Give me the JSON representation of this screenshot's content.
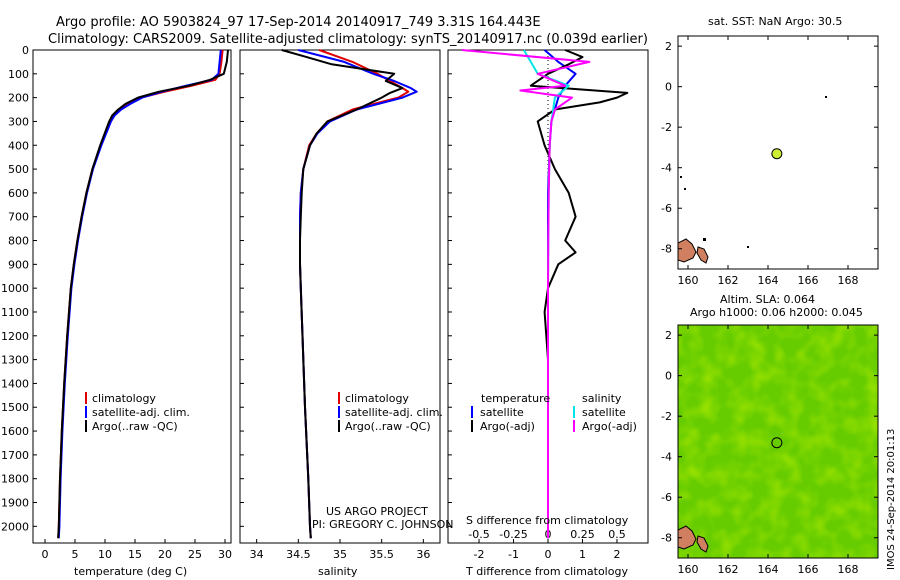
{
  "header": {
    "title_line1": "Argo profile: AO 5903824_97 17-Sep-2014 20140917_749 3.31S 164.443E",
    "title_line2": "Climatology: CARS2009. Satellite-adjusted climatology: synTS_20140917.nc (0.039d earlier)"
  },
  "depth_ticks": [
    "0",
    "100",
    "200",
    "300",
    "400",
    "500",
    "600",
    "700",
    "800",
    "900",
    "1000",
    "1100",
    "1200",
    "1300",
    "1400",
    "1500",
    "1600",
    "1700",
    "1800",
    "1900",
    "2000"
  ],
  "legend": {
    "climatology": "climatology",
    "satellite_adj": "satellite-adj. clim.",
    "argo_raw": "Argo(..raw -QC)",
    "temperature_hdr": "temperature",
    "salinity_hdr": "salinity",
    "satellite": "satellite",
    "argo_adj": "Argo(-adj)"
  },
  "colors": {
    "climatology": "#e00000",
    "satellite_adj": "#0000ff",
    "argo": "#000000",
    "t_satellite": "#0000ff",
    "t_argo": "#000000",
    "s_satellite": "#00e5e5",
    "s_argo": "#ff00ff",
    "sla_field": "#66cc00",
    "float_marker": "#ccee33",
    "land": "#d08060"
  },
  "credits": {
    "project": "US ARGO PROJECT",
    "pi": "PI: GREGORY C. JOHNSON"
  },
  "sst_map": {
    "title": "sat. SST: NaN Argo: 30.5",
    "xticks": [
      "160",
      "162",
      "164",
      "166",
      "168"
    ],
    "yticks": [
      "2",
      "0",
      "-2",
      "-4",
      "-6",
      "-8"
    ]
  },
  "sla_map": {
    "title_line1": "Altim. SLA: 0.064",
    "title_line2": "Argo h1000: 0.06 h2000: 0.045",
    "xticks": [
      "160",
      "162",
      "164",
      "166",
      "168"
    ],
    "yticks": [
      "2",
      "0",
      "-2",
      "-4",
      "-6",
      "-8"
    ]
  },
  "side_stamp": "IMOS 24-Sep-2014 20:01:13",
  "chart_data": [
    {
      "type": "line",
      "xlabel": "temperature (deg C)",
      "xticks": [
        "0",
        "5",
        "10",
        "15",
        "20",
        "25",
        "30"
      ],
      "xlim": [
        -2,
        31
      ],
      "ylim": [
        2070,
        0
      ],
      "series": [
        {
          "name": "climatology",
          "depth": [
            0,
            50,
            100,
            125,
            150,
            175,
            200,
            225,
            250,
            275,
            300,
            400,
            500,
            600,
            700,
            800,
            900,
            1000,
            1200,
            1400,
            1600,
            1800,
            2000,
            2050
          ],
          "values": [
            29.6,
            29.4,
            29.1,
            28.4,
            24.5,
            20.0,
            16.0,
            14.0,
            12.5,
            11.5,
            10.9,
            9.3,
            7.9,
            6.9,
            6.1,
            5.4,
            4.8,
            4.3,
            3.7,
            3.2,
            2.8,
            2.5,
            2.3,
            2.2
          ]
        },
        {
          "name": "satellite-adj. clim.",
          "depth": [
            0,
            50,
            100,
            125,
            150,
            175,
            200,
            225,
            250,
            275,
            300,
            400,
            500,
            600,
            700,
            800,
            900,
            1000,
            1200,
            1400,
            1600,
            1800,
            2000,
            2050
          ],
          "values": [
            29.3,
            29.1,
            28.9,
            27.8,
            23.5,
            19.5,
            16.2,
            14.3,
            12.7,
            11.6,
            11.0,
            9.4,
            8.0,
            7.0,
            6.2,
            5.5,
            4.9,
            4.4,
            3.8,
            3.3,
            2.9,
            2.6,
            2.4,
            2.3
          ]
        },
        {
          "name": "Argo(..raw -QC)",
          "depth": [
            0,
            50,
            100,
            125,
            150,
            175,
            200,
            225,
            250,
            275,
            300,
            400,
            500,
            600,
            700,
            800,
            900,
            1000,
            1200,
            1400,
            1600,
            1800,
            2000,
            2050
          ],
          "values": [
            30.5,
            30.3,
            29.8,
            27.5,
            24.0,
            19.0,
            15.5,
            13.5,
            12.2,
            11.2,
            10.7,
            9.2,
            7.9,
            6.9,
            6.1,
            5.4,
            4.8,
            4.3,
            3.7,
            3.2,
            2.8,
            2.5,
            2.3,
            2.2
          ]
        }
      ]
    },
    {
      "type": "line",
      "xlabel": "salinity",
      "xticks": [
        "34",
        "34.5",
        "35",
        "35.5",
        "36"
      ],
      "xlim": [
        33.8,
        36.2
      ],
      "ylim": [
        2070,
        0
      ],
      "series": [
        {
          "name": "climatology",
          "depth": [
            0,
            50,
            100,
            130,
            160,
            175,
            200,
            250,
            300,
            350,
            400,
            500,
            600,
            700,
            800,
            900,
            1000,
            1200,
            1500,
            1800,
            2000,
            2050
          ],
          "values": [
            34.75,
            35.15,
            35.45,
            35.6,
            35.75,
            35.82,
            35.7,
            35.15,
            34.85,
            34.72,
            34.63,
            34.56,
            34.53,
            34.52,
            34.52,
            34.52,
            34.53,
            34.55,
            34.58,
            34.62,
            34.64,
            34.65
          ]
        },
        {
          "name": "satellite-adj. clim.",
          "depth": [
            0,
            50,
            100,
            130,
            160,
            175,
            200,
            250,
            300,
            350,
            400,
            500,
            600,
            700,
            800,
            900,
            1000,
            1200,
            1500,
            1800,
            2000,
            2050
          ],
          "values": [
            34.5,
            35.05,
            35.4,
            35.65,
            35.85,
            35.92,
            35.75,
            35.2,
            34.88,
            34.73,
            34.64,
            34.56,
            34.53,
            34.52,
            34.52,
            34.52,
            34.53,
            34.55,
            34.58,
            34.62,
            34.64,
            34.65
          ]
        },
        {
          "name": "Argo(..raw -QC)",
          "depth": [
            0,
            30,
            60,
            100,
            130,
            160,
            180,
            200,
            250,
            300,
            350,
            400,
            500,
            600,
            700,
            800,
            900,
            1000,
            1200,
            1500,
            1800,
            2000,
            2050
          ],
          "values": [
            34.3,
            34.6,
            34.9,
            35.65,
            35.55,
            35.75,
            35.6,
            35.5,
            35.2,
            34.85,
            34.72,
            34.64,
            34.56,
            34.54,
            34.53,
            34.52,
            34.52,
            34.53,
            34.55,
            34.58,
            34.62,
            34.64,
            34.65
          ]
        }
      ]
    },
    {
      "type": "line",
      "xlabel": "T difference from climatology",
      "xlabel_top": "S difference from climatology",
      "xticks_T": [
        "-2",
        "-1",
        "0",
        "1",
        "2"
      ],
      "xticks_S": [
        "-0.5",
        "-0.25",
        "0",
        "0.25",
        "0.5"
      ],
      "xlim": [
        -2.9,
        2.9
      ],
      "ylim": [
        2070,
        0
      ],
      "series": [
        {
          "name": "temperature satellite",
          "depth": [
            0,
            50,
            100,
            150,
            200,
            250,
            300,
            400,
            600,
            800,
            1000,
            1500,
            2050
          ],
          "values": [
            -0.1,
            0.3,
            0.8,
            0.5,
            0.3,
            0.2,
            0.1,
            0.05,
            0.0,
            0.0,
            0.0,
            0.0,
            0.0
          ]
        },
        {
          "name": "temperature Argo(-adj)",
          "depth": [
            0,
            30,
            60,
            100,
            150,
            180,
            200,
            220,
            250,
            300,
            400,
            500,
            600,
            700,
            800,
            850,
            900,
            1000,
            1100,
            1300,
            1500,
            1700,
            2050
          ],
          "values": [
            0.5,
            1.0,
            0.6,
            0.0,
            -0.5,
            2.3,
            2.0,
            1.5,
            0.2,
            -0.3,
            -0.1,
            0.2,
            0.6,
            0.8,
            0.5,
            0.8,
            0.3,
            0.0,
            -0.1,
            0.0,
            0.0,
            0.0,
            0.0
          ]
        },
        {
          "name": "salinity satellite",
          "depth": [
            0,
            50,
            100,
            150,
            200,
            300,
            400,
            600,
            800,
            1000,
            1500,
            2050
          ],
          "values": [
            -0.7,
            -0.5,
            -0.3,
            0.6,
            0.2,
            0.1,
            0.05,
            0.02,
            0.01,
            0.0,
            0.0,
            0.0
          ]
        },
        {
          "name": "salinity Argo(-adj)",
          "depth": [
            0,
            50,
            100,
            150,
            170,
            200,
            250,
            300,
            400,
            600,
            800,
            1000,
            1500,
            2050
          ],
          "values": [
            -2.5,
            1.2,
            -0.3,
            0.5,
            -0.8,
            0.7,
            0.2,
            0.1,
            0.05,
            0.02,
            0.01,
            0.0,
            0.0,
            0.0
          ]
        }
      ]
    },
    {
      "type": "scatter",
      "title": "sat. SST: NaN Argo: 30.5",
      "xlim": [
        159.5,
        169.5
      ],
      "ylim": [
        -9,
        2.5
      ],
      "points": [
        {
          "x": 164.443,
          "y": -3.31
        }
      ]
    },
    {
      "type": "heatmap",
      "title": "Altim. SLA: 0.064 / Argo h1000: 0.06 h2000: 0.045",
      "xlim": [
        159.5,
        169.5
      ],
      "ylim": [
        -9,
        2.5
      ],
      "points": [
        {
          "x": 164.443,
          "y": -3.31
        }
      ]
    }
  ]
}
